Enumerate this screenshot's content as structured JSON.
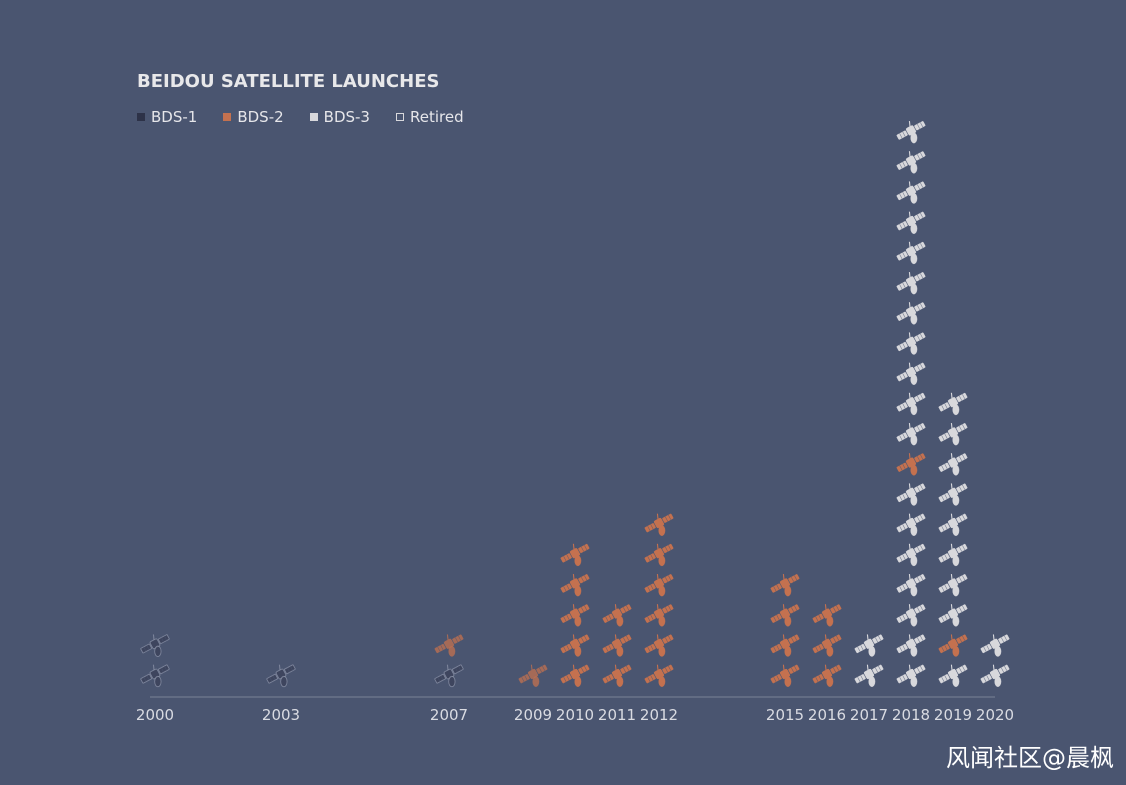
{
  "chart_data": {
    "type": "pictograph-stacked",
    "title": "BEIDOU SATELLITE LAUNCHES",
    "legend": [
      {
        "key": "bds1",
        "label": "BDS-1",
        "color": "#2d3248",
        "style": "filled"
      },
      {
        "key": "bds2",
        "label": "BDS-2",
        "color": "#c4714f",
        "style": "filled"
      },
      {
        "key": "bds3",
        "label": "BDS-3",
        "color": "#d8d8dc",
        "style": "filled"
      },
      {
        "key": "retired",
        "label": "Retired",
        "color": "#d8d8dc",
        "style": "outline"
      }
    ],
    "legend_placement": "top-left",
    "x_axis": {
      "min": 2000,
      "max": 2020
    },
    "ticks": [
      2000,
      2003,
      2007,
      2009,
      2010,
      2011,
      2012,
      2015,
      2016,
      2017,
      2018,
      2019,
      2020
    ],
    "series": [
      {
        "year": 2000,
        "satellites": [
          "bds1-retired",
          "bds1-retired"
        ]
      },
      {
        "year": 2003,
        "satellites": [
          "bds1-retired"
        ]
      },
      {
        "year": 2007,
        "satellites": [
          "bds1-retired",
          "bds2-retired"
        ]
      },
      {
        "year": 2009,
        "satellites": [
          "bds2-retired"
        ]
      },
      {
        "year": 2010,
        "satellites": [
          "bds2",
          "bds2",
          "bds2",
          "bds2",
          "bds2"
        ]
      },
      {
        "year": 2011,
        "satellites": [
          "bds2",
          "bds2",
          "bds2"
        ]
      },
      {
        "year": 2012,
        "satellites": [
          "bds2",
          "bds2",
          "bds2",
          "bds2",
          "bds2",
          "bds2"
        ]
      },
      {
        "year": 2015,
        "satellites": [
          "bds2",
          "bds2",
          "bds2",
          "bds2"
        ]
      },
      {
        "year": 2016,
        "satellites": [
          "bds2",
          "bds2",
          "bds2"
        ]
      },
      {
        "year": 2017,
        "satellites": [
          "bds3",
          "bds3"
        ]
      },
      {
        "year": 2018,
        "satellites": [
          "bds3",
          "bds3",
          "bds3",
          "bds3",
          "bds3",
          "bds3",
          "bds3",
          "bds2",
          "bds3",
          "bds3",
          "bds3",
          "bds3",
          "bds3",
          "bds3",
          "bds3",
          "bds3",
          "bds3",
          "bds3",
          "bds3"
        ]
      },
      {
        "year": 2019,
        "satellites": [
          "bds3",
          "bds2",
          "bds3",
          "bds3",
          "bds3",
          "bds3",
          "bds3",
          "bds3",
          "bds3",
          "bds3"
        ]
      },
      {
        "year": 2020,
        "satellites": [
          "bds3",
          "bds3"
        ]
      }
    ]
  },
  "watermark": "风闻社区@晨枫"
}
